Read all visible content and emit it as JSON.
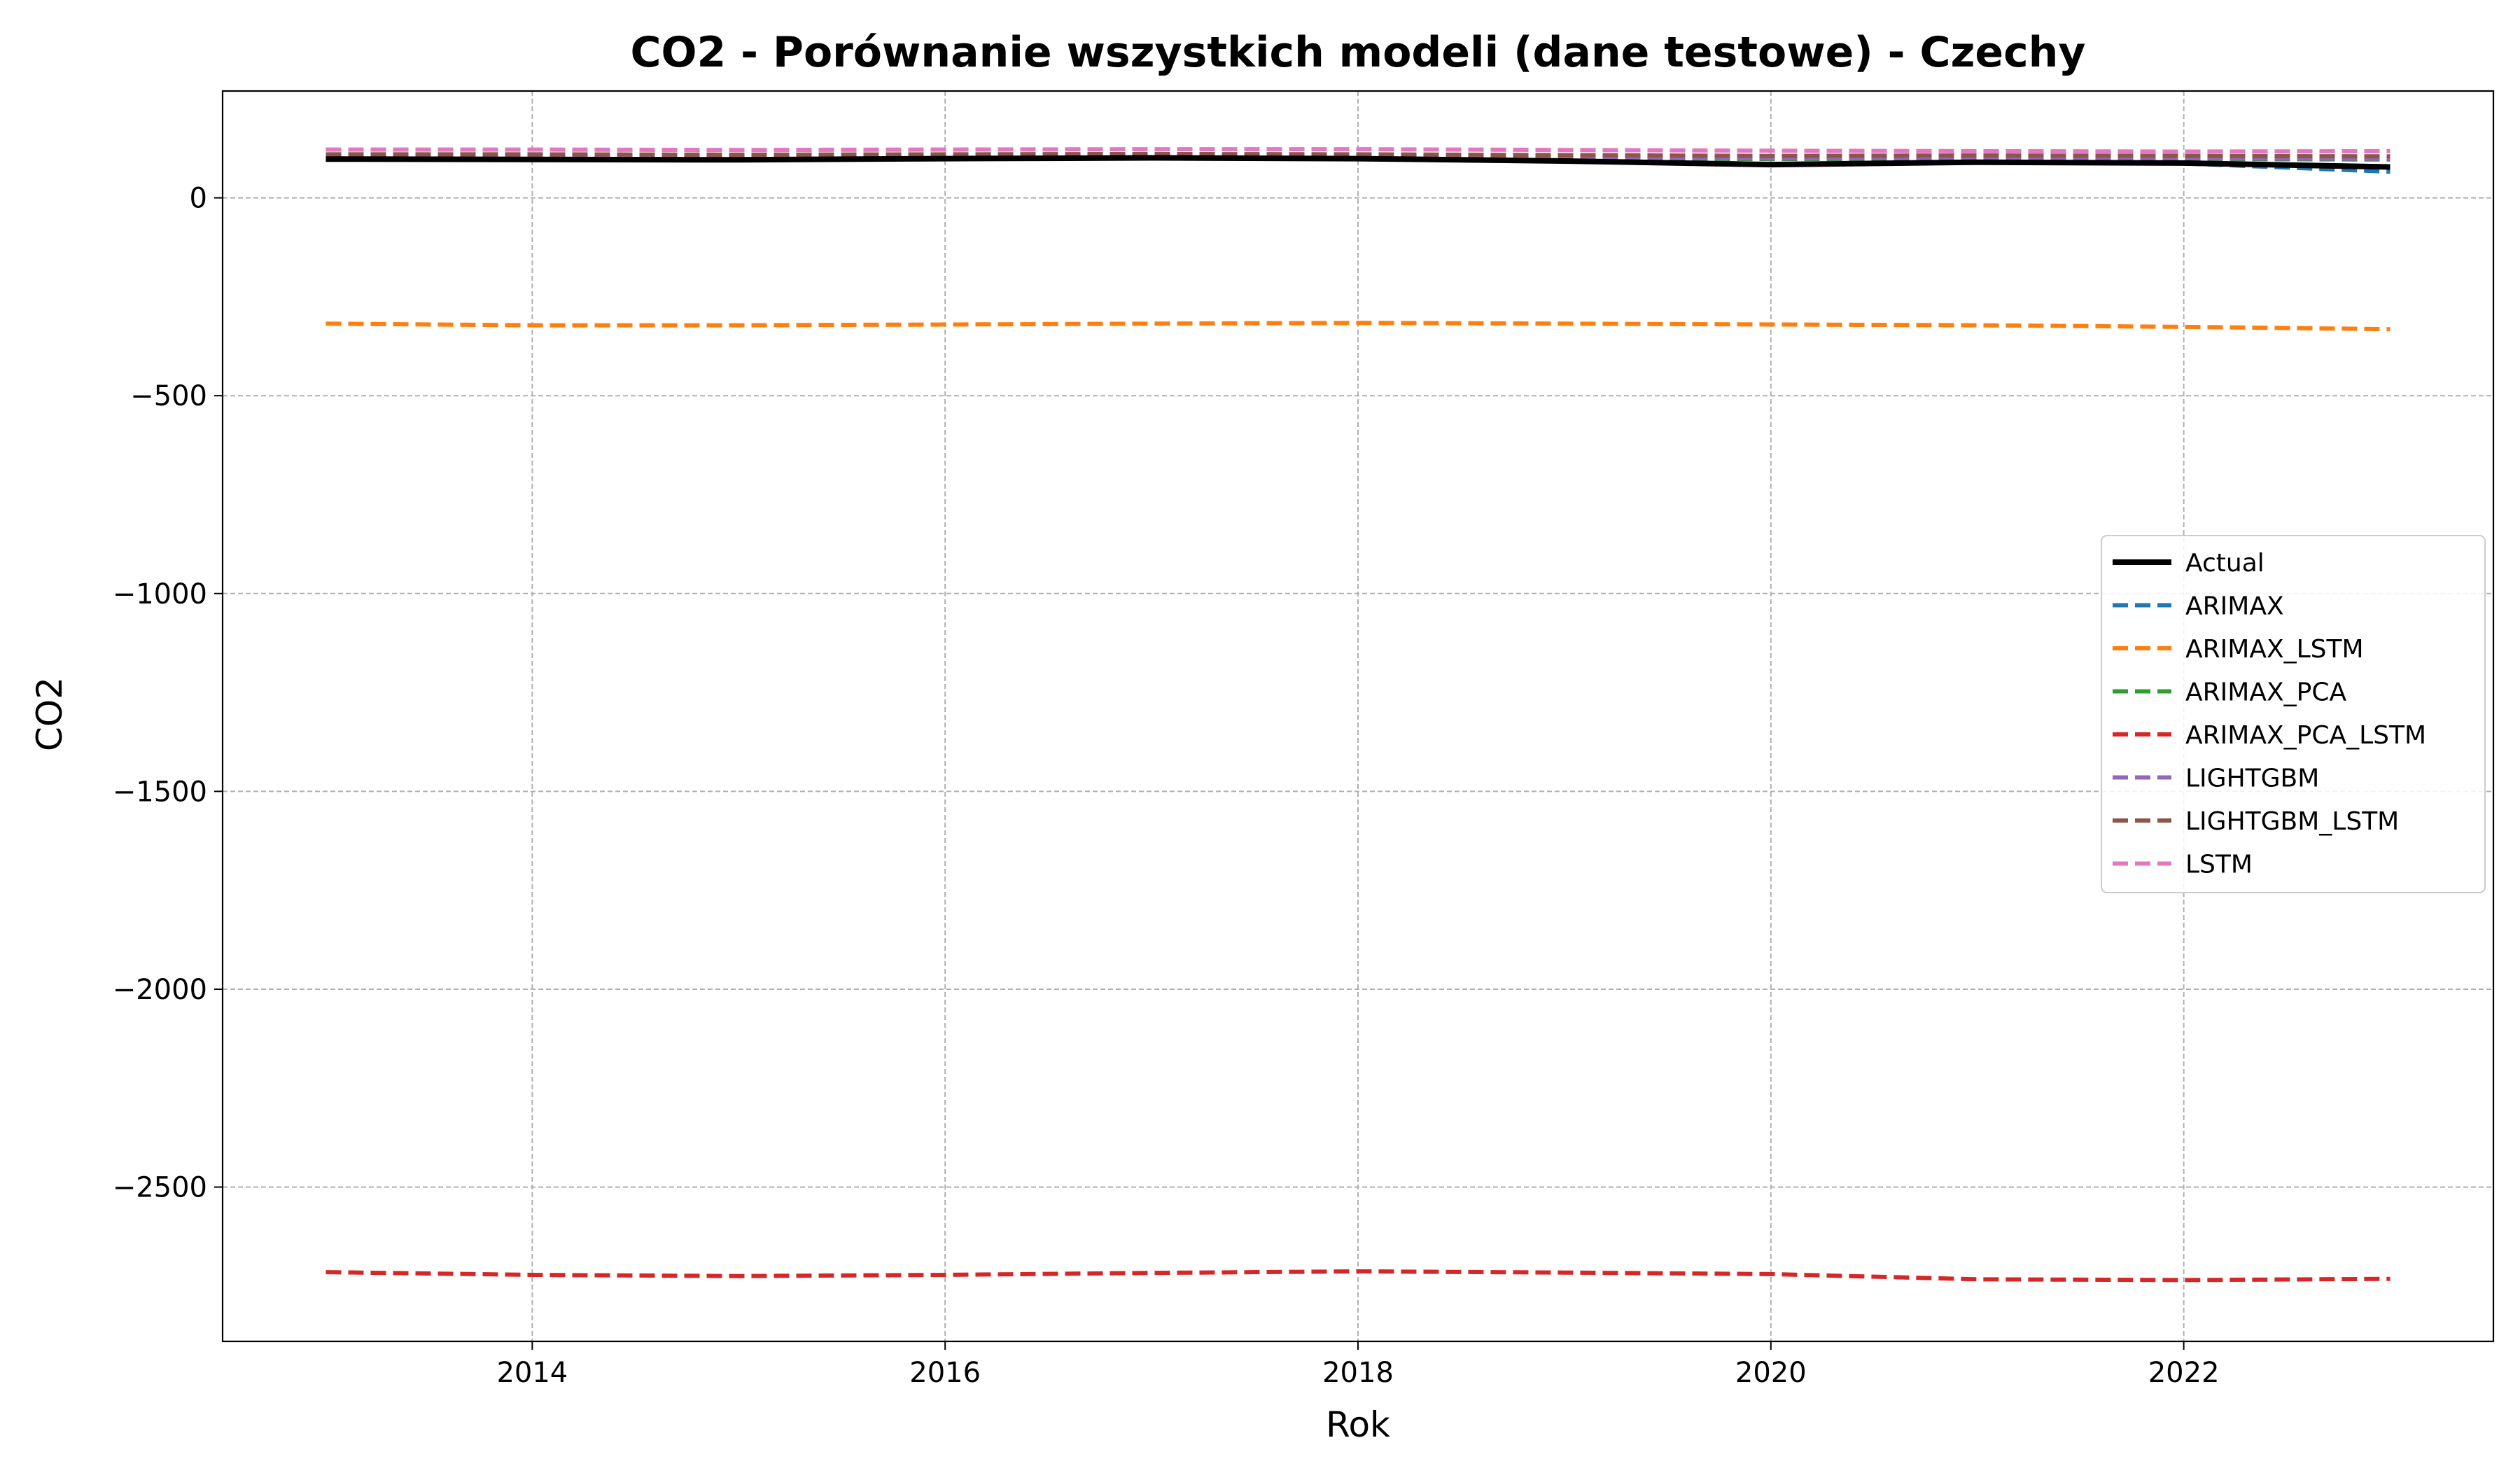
{
  "chart_data": {
    "type": "line",
    "title": "CO2 - Porównanie wszystkich modeli (dane testowe) - Czechy",
    "xlabel": "Rok",
    "ylabel": "CO2",
    "x": [
      2013,
      2014,
      2015,
      2016,
      2017,
      2018,
      2019,
      2020,
      2021,
      2022,
      2023
    ],
    "xlim": [
      2012.5,
      2023.5
    ],
    "ylim": [
      -2890,
      270
    ],
    "xticks": [
      2014,
      2016,
      2018,
      2020,
      2022
    ],
    "xtick_labels": [
      "2014",
      "2016",
      "2018",
      "2020",
      "2022"
    ],
    "yticks": [
      0,
      -500,
      -1000,
      -1500,
      -2000,
      -2500
    ],
    "ytick_labels": [
      "0",
      "−500",
      "−1000",
      "−1500",
      "−2000",
      "−2500"
    ],
    "grid": true,
    "legend_position": "center-right",
    "series": [
      {
        "name": "Actual",
        "color": "#000000",
        "dashed": false,
        "values": [
          98,
          97,
          96,
          99,
          101,
          99,
          93,
          84,
          90,
          88,
          78
        ]
      },
      {
        "name": "ARIMAX",
        "color": "#1f77b4",
        "dashed": true,
        "values": [
          98,
          97,
          96,
          99,
          101,
          99,
          93,
          84,
          90,
          87,
          66
        ]
      },
      {
        "name": "ARIMAX_LSTM",
        "color": "#ff7f0e",
        "dashed": true,
        "values": [
          -318,
          -322,
          -322,
          -320,
          -318,
          -316,
          -318,
          -320,
          -322,
          -326,
          -332
        ]
      },
      {
        "name": "ARIMAX_PCA",
        "color": "#2ca02c",
        "dashed": true,
        "values": [
          100,
          100,
          100,
          101,
          102,
          101,
          100,
          98,
          99,
          98,
          97
        ]
      },
      {
        "name": "ARIMAX_PCA_LSTM",
        "color": "#d62728",
        "dashed": true,
        "values": [
          -2715,
          -2722,
          -2725,
          -2722,
          -2717,
          -2713,
          -2716,
          -2720,
          -2733,
          -2735,
          -2732
        ]
      },
      {
        "name": "LIGHTGBM",
        "color": "#9467bd",
        "dashed": true,
        "values": [
          104,
          104,
          103,
          104,
          105,
          104,
          102,
          100,
          101,
          100,
          99
        ]
      },
      {
        "name": "LIGHTGBM_LSTM",
        "color": "#8c564b",
        "dashed": true,
        "values": [
          110,
          110,
          109,
          110,
          111,
          110,
          108,
          106,
          107,
          106,
          105
        ]
      },
      {
        "name": "LSTM",
        "color": "#e377c2",
        "dashed": true,
        "values": [
          122,
          122,
          121,
          122,
          123,
          123,
          121,
          119,
          118,
          117,
          118
        ]
      }
    ]
  }
}
